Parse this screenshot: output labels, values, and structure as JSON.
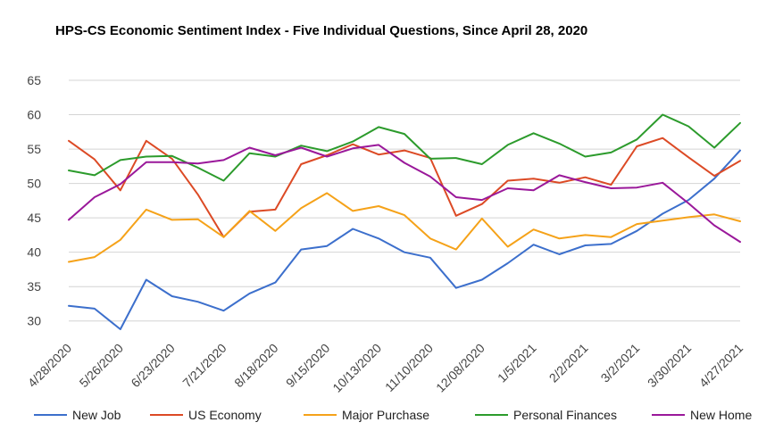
{
  "chart_data": {
    "type": "line",
    "title": "HPS-CS Economic Sentiment Index - Five Individual Questions, Since April 28, 2020",
    "xlabel": "",
    "ylabel": "",
    "ylim": [
      27.5,
      65
    ],
    "yticks": [
      30,
      35,
      40,
      45,
      50,
      55,
      60,
      65
    ],
    "grid": true,
    "legend_position": "bottom",
    "x_tick_labels": [
      "4/28/2020",
      "5/26/2020",
      "6/23/2020",
      "7/21/2020",
      "8/18/2020",
      "9/15/2020",
      "10/13/2020",
      "11/10/2020",
      "12/08/2020",
      "1/5/2021",
      "2/2/2021",
      "3/2/2021",
      "3/30/2021",
      "4/27/2021"
    ],
    "x_tick_indices": [
      0,
      2,
      4,
      6,
      8,
      10,
      12,
      14,
      16,
      18,
      20,
      22,
      24,
      26
    ],
    "num_points": 27,
    "series": [
      {
        "name": "New Job",
        "color": "#3c6fcc",
        "values": [
          32.2,
          31.8,
          28.8,
          36.0,
          33.6,
          32.8,
          31.5,
          34.0,
          35.6,
          40.4,
          40.9,
          43.4,
          42.0,
          40.0,
          39.2,
          34.8,
          36.0,
          38.4,
          41.1,
          39.7,
          41.0,
          41.2,
          43.1,
          45.6,
          47.6,
          50.7,
          54.8
        ]
      },
      {
        "name": "US Economy",
        "color": "#dc4a25",
        "values": [
          56.2,
          53.5,
          49.0,
          56.2,
          53.6,
          48.4,
          42.2,
          45.9,
          46.2,
          52.8,
          54.1,
          55.7,
          54.2,
          54.8,
          53.7,
          45.3,
          47.0,
          50.4,
          50.7,
          50.1,
          50.9,
          49.8,
          55.4,
          56.6,
          53.8,
          51.1,
          53.3
        ]
      },
      {
        "name": "Major Purchase",
        "color": "#f5a219",
        "values": [
          38.6,
          39.3,
          41.8,
          46.2,
          44.7,
          44.8,
          42.2,
          46.0,
          43.1,
          46.4,
          48.6,
          46.0,
          46.7,
          45.4,
          42.0,
          40.4,
          44.9,
          40.8,
          43.3,
          42.0,
          42.5,
          42.2,
          44.1,
          44.6,
          45.1,
          45.5,
          44.5
        ]
      },
      {
        "name": "Personal Finances",
        "color": "#2c9b2c",
        "values": [
          51.9,
          51.2,
          53.4,
          53.9,
          54.0,
          52.3,
          50.4,
          54.4,
          53.9,
          55.5,
          54.7,
          56.1,
          58.2,
          57.2,
          53.6,
          53.7,
          52.8,
          55.6,
          57.3,
          55.8,
          53.9,
          54.5,
          56.4,
          60.0,
          58.3,
          55.2,
          58.8
        ]
      },
      {
        "name": "New Home",
        "color": "#9a189a",
        "values": [
          44.7,
          48.0,
          49.9,
          53.1,
          53.1,
          52.9,
          53.4,
          55.2,
          54.1,
          55.2,
          53.9,
          55.1,
          55.6,
          53.0,
          51.0,
          48.0,
          47.6,
          49.3,
          49.0,
          51.2,
          50.2,
          49.3,
          49.4,
          50.1,
          47.1,
          43.9,
          41.5
        ]
      }
    ]
  }
}
